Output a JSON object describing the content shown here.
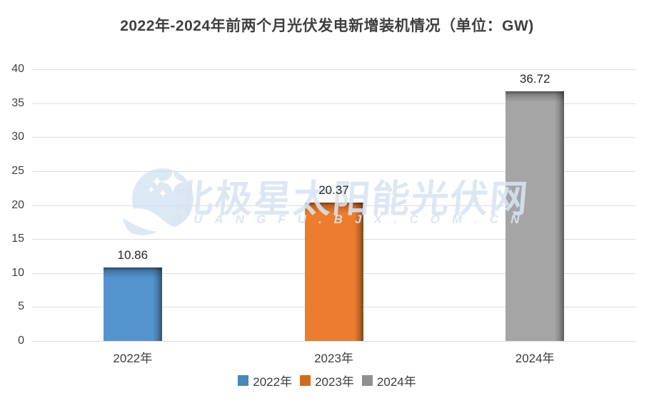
{
  "chart_data": {
    "type": "bar",
    "title": "2022年-2024年前两个月光伏发电新增装机情况（单位：GW)",
    "categories": [
      "2022年",
      "2023年",
      "2024年"
    ],
    "values": [
      10.86,
      20.37,
      36.72
    ],
    "data_labels": [
      "10.86",
      "20.37",
      "36.72"
    ],
    "bar_colors": [
      "#5494CE",
      "#EC7D2E",
      "#A5A5A5"
    ],
    "ylim": [
      0,
      40
    ],
    "yticks": [
      0,
      5,
      10,
      15,
      20,
      25,
      30,
      35,
      40
    ],
    "grid": true,
    "legend": {
      "position": "bottom",
      "entries": [
        {
          "label": "2022年",
          "color": "#4B86B8"
        },
        {
          "label": "2023年",
          "color": "#D06C20"
        },
        {
          "label": "2024年",
          "color": "#8F8F8F"
        }
      ]
    }
  },
  "watermark": {
    "logo": "bjx-polaris-logo",
    "text": "北极星太阳能光伏网",
    "subtext": "GUANGFU.BJX.COM.CN",
    "color": "#D8E4F2"
  },
  "colors": {
    "background": "#FFFFFF",
    "title_text": "#3F3F3F",
    "tick_text": "#3F3F3F",
    "data_label_text": "#262626",
    "gridline": "#DCDCDE"
  }
}
